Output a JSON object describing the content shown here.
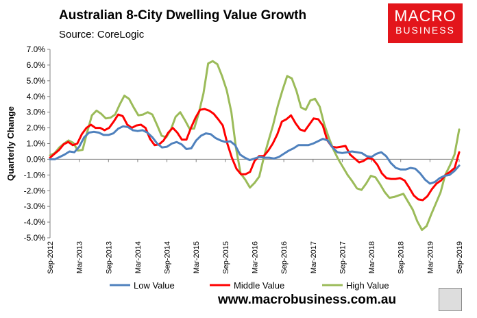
{
  "header": {
    "title": "Australian 8-City Dwelling Value Growth",
    "source": "Source: CoreLogic"
  },
  "logo": {
    "line1": "MACRO",
    "line2": "BUSINESS"
  },
  "footer": {
    "url": "www.macrobusiness.com.au"
  },
  "colors": {
    "low": "#4f81bd",
    "middle": "#ff0000",
    "high": "#9bbb59",
    "logo_bg": "#e3151b"
  },
  "chart_data": {
    "type": "line",
    "ylabel": "Quarterly Change",
    "ylim": [
      -5,
      7
    ],
    "yticks": [
      "7.0%",
      "6.0%",
      "5.0%",
      "4.0%",
      "3.0%",
      "2.0%",
      "1.0%",
      "0.0%",
      "-1.0%",
      "-2.0%",
      "-3.0%",
      "-4.0%",
      "-5.0%"
    ],
    "xtick_labels": [
      "Sep-2012",
      "Mar-2013",
      "Sep-2013",
      "Mar-2014",
      "Sep-2014",
      "Mar-2015",
      "Sep-2015",
      "Mar-2016",
      "Sep-2016",
      "Mar-2017",
      "Sep-2017",
      "Mar-2018",
      "Sep-2018",
      "Mar-2019",
      "Sep-2019"
    ],
    "legend_position": "bottom",
    "series": [
      {
        "name": "Low Value",
        "key": "low",
        "values": [
          0.0,
          0.0,
          0.15,
          0.3,
          0.5,
          0.45,
          0.8,
          1.4,
          1.7,
          1.75,
          1.7,
          1.55,
          1.55,
          1.65,
          1.95,
          2.1,
          2.05,
          1.85,
          1.8,
          1.85,
          1.7,
          1.4,
          1.0,
          0.75,
          0.8,
          1.0,
          1.1,
          0.95,
          0.65,
          0.7,
          1.2,
          1.5,
          1.65,
          1.6,
          1.35,
          1.2,
          1.1,
          1.15,
          0.9,
          0.3,
          0.1,
          -0.05,
          0.05,
          0.15,
          0.1,
          0.1,
          0.05,
          0.15,
          0.35,
          0.55,
          0.7,
          0.9,
          0.9,
          0.9,
          1.0,
          1.15,
          1.3,
          1.2,
          0.75,
          0.45,
          0.4,
          0.45,
          0.5,
          0.45,
          0.4,
          0.2,
          0.15,
          0.35,
          0.45,
          0.2,
          -0.25,
          -0.55,
          -0.65,
          -0.65,
          -0.55,
          -0.6,
          -0.9,
          -1.3,
          -1.55,
          -1.45,
          -1.2,
          -1.05,
          -1.0,
          -0.75,
          -0.4
        ]
      },
      {
        "name": "Middle Value",
        "key": "middle",
        "values": [
          0.1,
          0.35,
          0.6,
          0.95,
          1.1,
          0.9,
          1.0,
          1.6,
          2.0,
          2.2,
          2.0,
          2.0,
          1.85,
          2.0,
          2.4,
          2.85,
          2.75,
          2.2,
          2.0,
          2.15,
          2.2,
          2.0,
          1.3,
          0.9,
          0.95,
          1.2,
          1.7,
          2.0,
          1.7,
          1.25,
          1.25,
          2.0,
          2.65,
          3.15,
          3.2,
          3.1,
          2.9,
          2.55,
          2.15,
          1.0,
          0.1,
          -0.6,
          -0.95,
          -0.95,
          -0.8,
          -0.1,
          0.2,
          0.2,
          0.55,
          1.0,
          1.6,
          2.4,
          2.55,
          2.8,
          2.3,
          1.9,
          1.8,
          2.2,
          2.6,
          2.55,
          2.15,
          1.2,
          0.8,
          0.75,
          0.8,
          0.85,
          0.3,
          0.05,
          -0.2,
          -0.1,
          0.1,
          0.0,
          -0.35,
          -0.9,
          -1.2,
          -1.25,
          -1.25,
          -1.2,
          -1.35,
          -1.8,
          -2.3,
          -2.55,
          -2.6,
          -2.35,
          -1.9,
          -1.55,
          -1.35,
          -1.0,
          -0.8,
          -0.55,
          0.45
        ]
      },
      {
        "name": "High Value",
        "key": "high",
        "values": [
          0.25,
          0.4,
          0.75,
          1.0,
          1.2,
          1.05,
          0.55,
          0.6,
          1.75,
          2.8,
          3.1,
          2.9,
          2.6,
          2.65,
          2.85,
          3.5,
          4.05,
          3.85,
          3.3,
          2.8,
          2.85,
          3.0,
          2.85,
          2.2,
          1.5,
          1.4,
          1.9,
          2.7,
          3.0,
          2.5,
          1.95,
          1.95,
          2.95,
          4.2,
          6.1,
          6.25,
          6.05,
          5.3,
          4.4,
          3.0,
          0.7,
          -0.9,
          -1.3,
          -1.8,
          -1.5,
          -1.1,
          0.15,
          1.2,
          2.2,
          3.4,
          4.4,
          5.3,
          5.15,
          4.35,
          3.3,
          3.15,
          3.75,
          3.85,
          3.35,
          2.2,
          1.35,
          0.6,
          0.0,
          -0.5,
          -1.0,
          -1.4,
          -1.85,
          -1.95,
          -1.55,
          -1.05,
          -1.15,
          -1.6,
          -2.1,
          -2.45,
          -2.4,
          -2.3,
          -2.2,
          -2.7,
          -3.2,
          -3.95,
          -4.5,
          -4.25,
          -3.5,
          -2.8,
          -2.1,
          -1.0,
          -0.4,
          0.3,
          1.9
        ]
      }
    ]
  }
}
